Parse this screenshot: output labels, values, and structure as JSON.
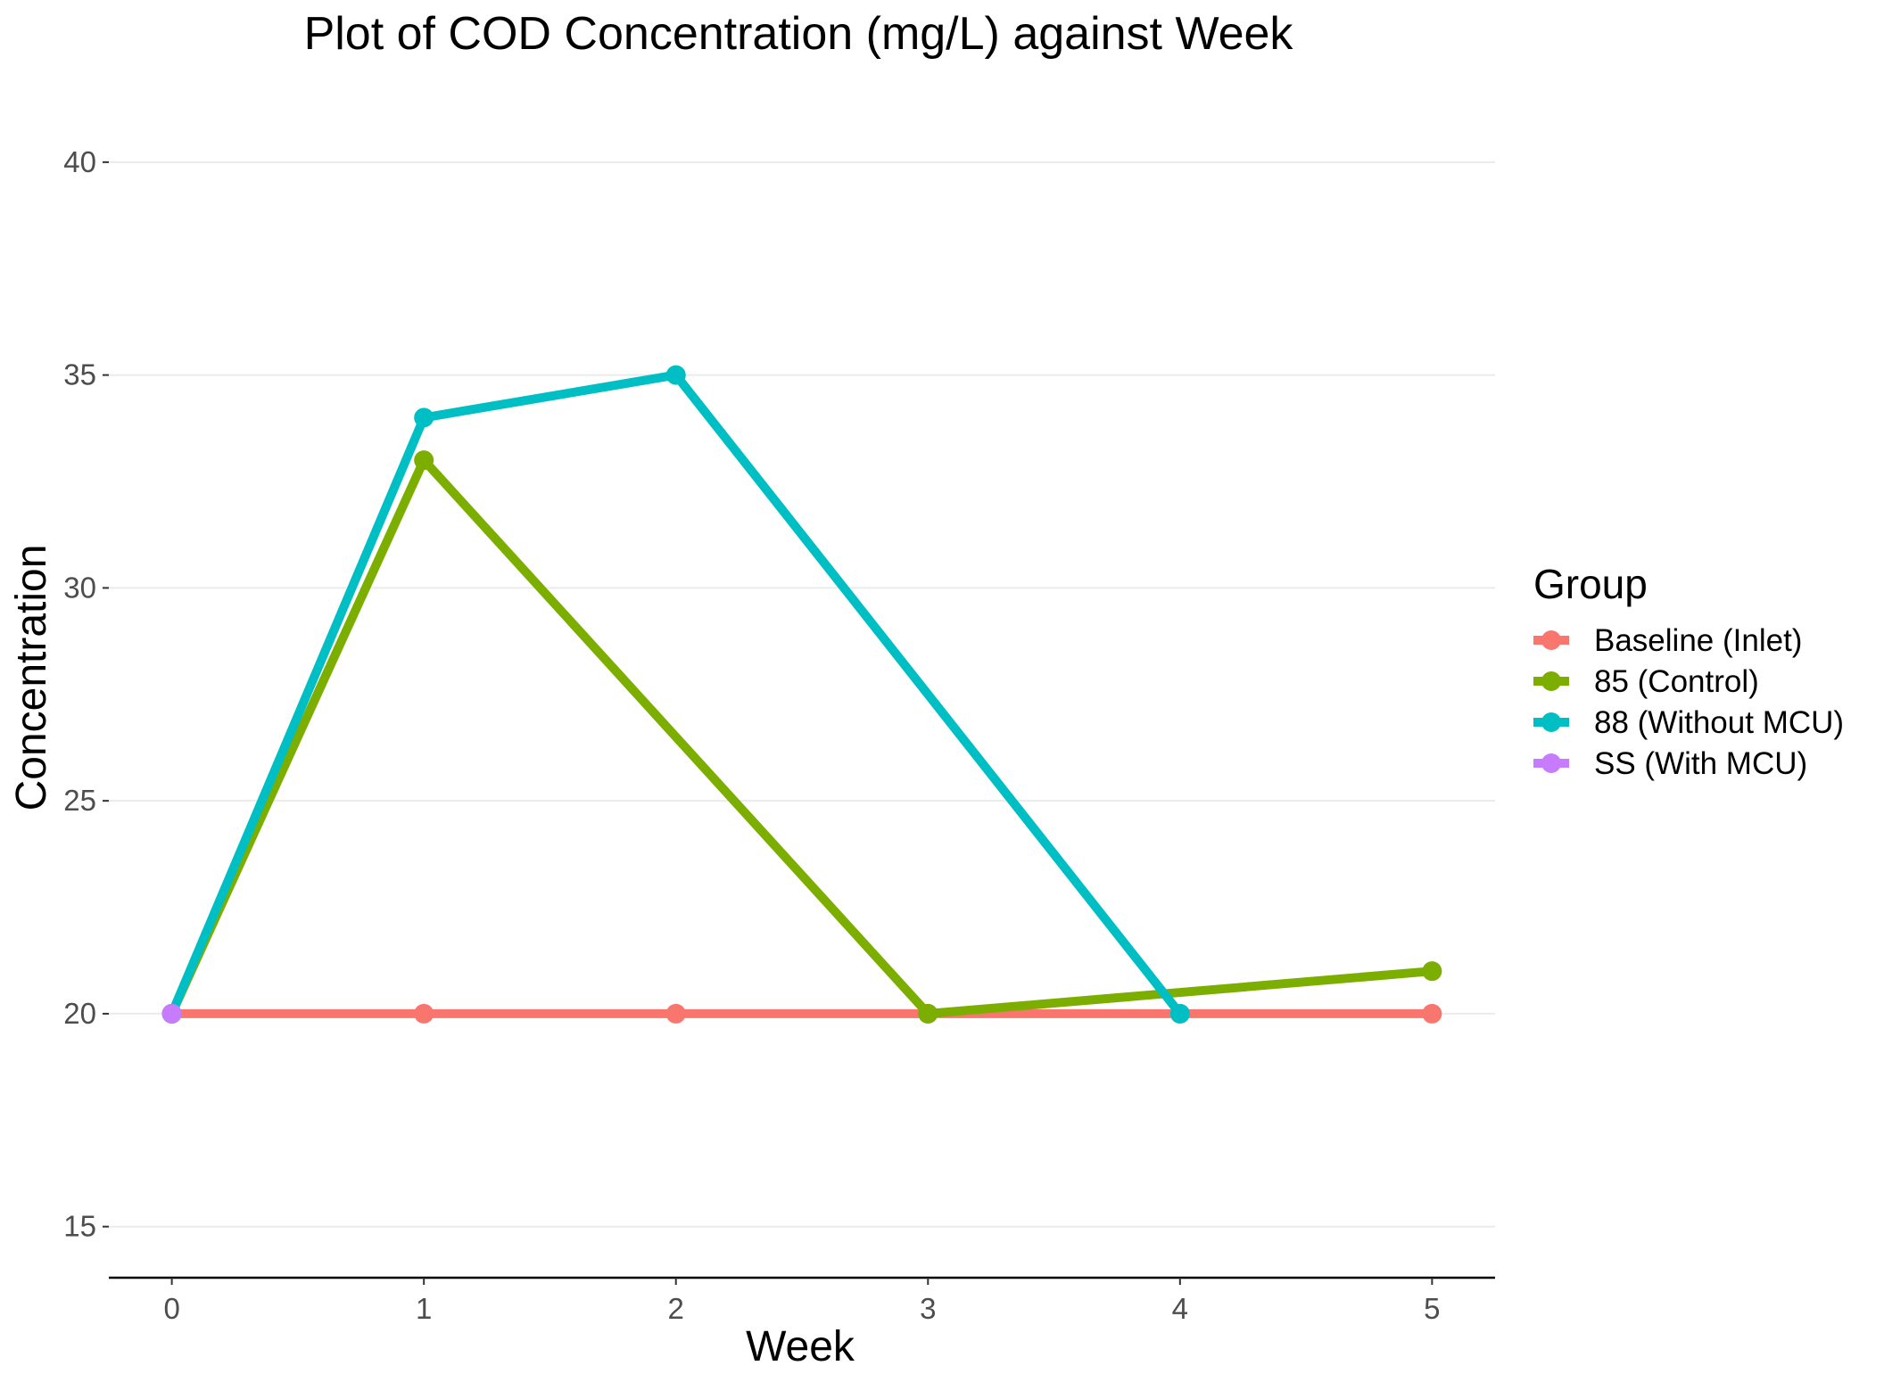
{
  "chart_data": {
    "type": "line",
    "title": "Plot of COD Concentration (mg/L) against Week",
    "xlabel": "Week",
    "ylabel": "Concentration",
    "xlim": [
      -0.25,
      5.25
    ],
    "ylim": [
      13.8,
      41.4
    ],
    "x_ticks": [
      0,
      1,
      2,
      3,
      4,
      5
    ],
    "y_ticks": [
      15,
      20,
      25,
      30,
      35,
      40
    ],
    "grid": "horizontal major only",
    "legend": {
      "title": "Group",
      "position": "right"
    },
    "series": [
      {
        "name": "Baseline (Inlet)",
        "color": "#F8766D",
        "x": [
          0,
          1,
          2,
          3,
          4,
          5
        ],
        "y": [
          20,
          20,
          20,
          20,
          20,
          20
        ]
      },
      {
        "name": "85 (Control)",
        "color": "#7CAE00",
        "x": [
          0,
          1,
          3,
          5
        ],
        "y": [
          20,
          33,
          20,
          21
        ]
      },
      {
        "name": "88 (Without MCU)",
        "color": "#00BFC4",
        "x": [
          0,
          1,
          2,
          4
        ],
        "y": [
          20,
          34,
          35,
          20
        ]
      },
      {
        "name": "SS (With MCU)",
        "color": "#C77CFF",
        "x": [
          0
        ],
        "y": [
          20
        ]
      }
    ]
  }
}
